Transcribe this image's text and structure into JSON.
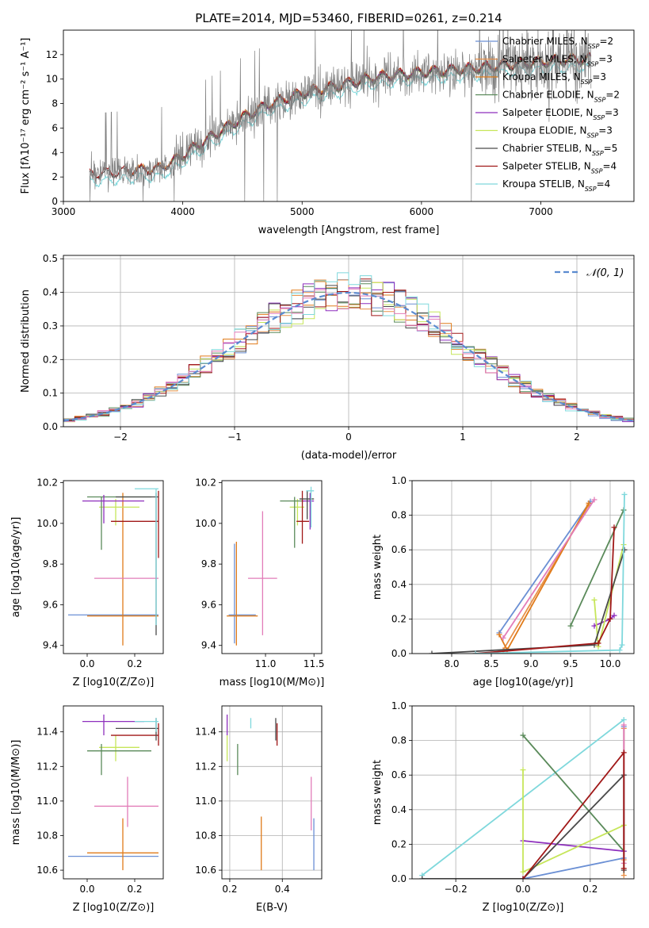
{
  "figure": {
    "title": "PLATE=2014, MJD=53460, FIBERID=0261, z=0.214"
  },
  "colors": {
    "Chabrier MILES": "#6a8fd4",
    "Salpeter MILES": "#e8914a",
    "Kroupa MILES": "#e07b1a",
    "Chabrier ELODIE": "#5a8a5a",
    "Salpeter ELODIE": "#8e2fbd",
    "Kroupa ELODIE": "#c6e65a",
    "Chabrier STELIB": "#4a4a4a",
    "Salpeter STELIB": "#a01818",
    "Kroupa STELIB": "#7fd8dc",
    "pink": "#e27cb8"
  },
  "chart_data": [
    {
      "id": "spectrum",
      "type": "line",
      "xlabel": "wavelength [Angstrom, rest frame]",
      "ylabel": "Flux [fλ10⁻¹⁷ erg cm⁻² s⁻¹ A⁻¹]",
      "xlim": [
        3000,
        7780
      ],
      "ylim": [
        0,
        14
      ],
      "xticks": [
        3000,
        4000,
        5000,
        6000,
        7000
      ],
      "yticks": [
        0,
        2,
        4,
        6,
        8,
        10,
        12
      ],
      "grid": false,
      "legend_position": "right",
      "legend": [
        {
          "text": "Chabrier MILES, N_SSP=2",
          "color": "#6a8fd4"
        },
        {
          "text": "Salpeter MILES, N_SSP=3",
          "color": "#e8914a"
        },
        {
          "text": "Kroupa MILES, N_SSP=3",
          "color": "#e07b1a"
        },
        {
          "text": "Chabrier ELODIE, N_SSP=2",
          "color": "#5a8a5a"
        },
        {
          "text": "Salpeter ELODIE, N_SSP=3",
          "color": "#8e2fbd"
        },
        {
          "text": "Kroupa ELODIE, N_SSP=3",
          "color": "#c6e65a"
        },
        {
          "text": "Chabrier STELIB, N_SSP=5",
          "color": "#4a4a4a"
        },
        {
          "text": "Salpeter STELIB, N_SSP=4",
          "color": "#a01818"
        },
        {
          "text": "Kroupa STELIB, N_SSP=4",
          "color": "#7fd8dc"
        }
      ],
      "data_color": "#808080",
      "data_range": [
        3220,
        7420
      ],
      "continuum": {
        "x": [
          3220,
          3400,
          3600,
          3800,
          3950,
          4100,
          4300,
          4500,
          4700,
          5000,
          5300,
          5600,
          6000,
          6400,
          6800,
          7200,
          7420
        ],
        "y": [
          2.2,
          2.3,
          2.5,
          2.6,
          3.4,
          4.4,
          5.6,
          6.8,
          7.8,
          8.8,
          9.4,
          10.1,
          10.5,
          10.8,
          11.2,
          11.5,
          11.6
        ]
      },
      "model_series": [
        {
          "name": "Kroupa STELIB",
          "color": "#7fd8dc",
          "offset": -0.6,
          "from": 3220
        },
        {
          "name": "Chabrier MILES",
          "color": "#6a8fd4",
          "offset": 0.05,
          "from": 3540
        },
        {
          "name": "Salpeter MILES",
          "color": "#e8914a",
          "offset": 0.15,
          "from": 3540
        },
        {
          "name": "Kroupa MILES",
          "color": "#e07b1a",
          "offset": 0.1,
          "from": 3540
        },
        {
          "name": "Kroupa ELODIE",
          "color": "#c6e65a",
          "offset": 0.0,
          "from": 3900
        },
        {
          "name": "Chabrier ELODIE",
          "color": "#5a8a5a",
          "offset": -0.05,
          "from": 3900
        },
        {
          "name": "Salpeter ELODIE",
          "color": "#8e2fbd",
          "offset": 0.05,
          "from": 3900
        },
        {
          "name": "Chabrier STELIB",
          "color": "#4a4a4a",
          "offset": 0.0,
          "from": 3220
        },
        {
          "name": "Salpeter STELIB",
          "color": "#a01818",
          "offset": 0.1,
          "from": 3220
        }
      ]
    },
    {
      "id": "residuals",
      "type": "step",
      "xlabel": "(data-model)/error",
      "ylabel": "Normed distribution",
      "xlim": [
        -2.5,
        2.5
      ],
      "ylim": [
        0,
        0.51
      ],
      "xticks": [
        -2,
        -1,
        0,
        1,
        2
      ],
      "yticks": [
        0.0,
        0.1,
        0.2,
        0.3,
        0.4,
        0.5
      ],
      "grid": true,
      "legend_position": "upper right",
      "legend": [
        {
          "text": "N(0,1)",
          "color": "#5b8bd0",
          "style": "dashed"
        }
      ],
      "bin_width": 0.1,
      "bin_range": [
        -2.5,
        2.5
      ],
      "gauss_curve": {
        "mu": 0,
        "sigma": 1,
        "color": "#5b8bd0"
      },
      "series_colors": [
        "#6a8fd4",
        "#e8914a",
        "#e07b1a",
        "#5a8a5a",
        "#8e2fbd",
        "#c6e65a",
        "#4a4a4a",
        "#a01818",
        "#7fd8dc",
        "#e27cb8"
      ]
    },
    {
      "id": "age_vs_Z",
      "type": "errorbar",
      "xlabel": "Z [log10(Z/Z⊙)]",
      "ylabel": "age  [log10(age/yr)]",
      "xlim": [
        -0.1,
        0.32
      ],
      "ylim": [
        9.36,
        10.21
      ],
      "xticks": [
        0.0,
        0.2
      ],
      "yticks": [
        9.4,
        9.6,
        9.8,
        10.0,
        10.2
      ],
      "grid": false,
      "points": [
        {
          "color": "#6a8fd4",
          "x": 0.11,
          "xlo": -0.08,
          "xhi": 0.3,
          "y": 9.55,
          "ylo": 9.55,
          "yhi": 9.55
        },
        {
          "color": "#e07b1a",
          "x": 0.15,
          "xlo": 0.0,
          "xhi": 0.3,
          "y": 9.545,
          "ylo": 9.4,
          "yhi": 10.15
        },
        {
          "color": "#e27cb8",
          "x": 0.17,
          "xlo": 0.03,
          "xhi": 0.3,
          "y": 9.73,
          "ylo": 9.73,
          "yhi": 9.73
        },
        {
          "color": "#c6e65a",
          "x": 0.12,
          "xlo": 0.05,
          "xhi": 0.22,
          "y": 10.08,
          "ylo": 9.99,
          "yhi": 10.12
        },
        {
          "color": "#5a8a5a",
          "x": 0.06,
          "xlo": 0.0,
          "xhi": 0.27,
          "y": 10.13,
          "ylo": 9.87,
          "yhi": 10.13
        },
        {
          "color": "#8e2fbd",
          "x": 0.07,
          "xlo": -0.02,
          "xhi": 0.24,
          "y": 10.11,
          "ylo": 10.0,
          "yhi": 10.14
        },
        {
          "color": "#a01818",
          "x": 0.3,
          "xlo": 0.1,
          "xhi": 0.3,
          "y": 10.01,
          "ylo": 9.83,
          "yhi": 10.16
        },
        {
          "color": "#4a4a4a",
          "x": 0.29,
          "xlo": 0.12,
          "xhi": 0.3,
          "y": 10.13,
          "ylo": 9.45,
          "yhi": 10.15
        },
        {
          "color": "#7fd8dc",
          "x": 0.29,
          "xlo": 0.2,
          "xhi": 0.3,
          "y": 10.17,
          "ylo": 9.5,
          "yhi": 10.17
        }
      ]
    },
    {
      "id": "age_vs_mass",
      "type": "errorbar",
      "xlabel": "mass [log10(M/M⊙)]",
      "ylabel": "",
      "xlim": [
        10.55,
        11.58
      ],
      "ylim": [
        9.36,
        10.21
      ],
      "xticks": [
        11.0,
        11.5
      ],
      "yticks": [
        9.4,
        9.6,
        9.8,
        10.0,
        10.2
      ],
      "grid": false,
      "points": [
        {
          "color": "#6a8fd4",
          "x": 10.68,
          "xlo": 10.62,
          "xhi": 10.9,
          "y": 9.55,
          "ylo": 9.41,
          "yhi": 9.9
        },
        {
          "color": "#e07b1a",
          "x": 10.7,
          "xlo": 10.6,
          "xhi": 10.92,
          "y": 9.545,
          "ylo": 9.4,
          "yhi": 9.91
        },
        {
          "color": "#e27cb8",
          "x": 10.97,
          "xlo": 10.82,
          "xhi": 11.12,
          "y": 9.73,
          "ylo": 9.45,
          "yhi": 10.06
        },
        {
          "color": "#c6e65a",
          "x": 11.33,
          "xlo": 11.25,
          "xhi": 11.4,
          "y": 10.08,
          "ylo": 9.99,
          "yhi": 10.12
        },
        {
          "color": "#5a8a5a",
          "x": 11.3,
          "xlo": 11.15,
          "xhi": 11.4,
          "y": 10.11,
          "ylo": 9.88,
          "yhi": 10.13
        },
        {
          "color": "#8e2fbd",
          "x": 11.46,
          "xlo": 11.38,
          "xhi": 11.5,
          "y": 10.11,
          "ylo": 9.97,
          "yhi": 10.15
        },
        {
          "color": "#a01818",
          "x": 11.38,
          "xlo": 11.32,
          "xhi": 11.45,
          "y": 10.01,
          "ylo": 9.9,
          "yhi": 10.16
        },
        {
          "color": "#4a4a4a",
          "x": 11.43,
          "xlo": 11.35,
          "xhi": 11.5,
          "y": 10.12,
          "ylo": 10.02,
          "yhi": 10.16
        },
        {
          "color": "#7fd8dc",
          "x": 11.47,
          "xlo": 11.42,
          "xhi": 11.5,
          "y": 10.16,
          "ylo": 9.98,
          "yhi": 10.18
        }
      ]
    },
    {
      "id": "weight_vs_age",
      "type": "line",
      "xlabel": "age  [log10(age/yr)]",
      "ylabel": "mass weight",
      "xlim": [
        7.5,
        10.3
      ],
      "ylim": [
        0,
        1.0
      ],
      "xticks": [
        8.0,
        8.5,
        9.0,
        9.5,
        10.0
      ],
      "yticks": [
        0.0,
        0.2,
        0.4,
        0.6,
        0.8,
        1.0
      ],
      "grid": true,
      "series": [
        {
          "color": "#6a8fd4",
          "x": [
            8.6,
            9.75
          ],
          "y": [
            0.12,
            0.88
          ]
        },
        {
          "color": "#e8914a",
          "x": [
            8.65,
            9.73
          ],
          "y": [
            0.02,
            0.86
          ]
        },
        {
          "color": "#e07b1a",
          "x": [
            8.6,
            8.7,
            9.73
          ],
          "y": [
            0.11,
            0.02,
            0.87
          ]
        },
        {
          "color": "#e27cb8",
          "x": [
            8.65,
            9.8
          ],
          "y": [
            0.09,
            0.89
          ]
        },
        {
          "color": "#5a8a5a",
          "x": [
            9.5,
            10.17
          ],
          "y": [
            0.16,
            0.83
          ]
        },
        {
          "color": "#8e2fbd",
          "x": [
            9.8,
            10.0,
            10.05
          ],
          "y": [
            0.16,
            0.2,
            0.22
          ]
        },
        {
          "color": "#c6e65a",
          "x": [
            9.8,
            9.85,
            10.17
          ],
          "y": [
            0.31,
            0.04,
            0.63
          ]
        },
        {
          "color": "#4a4a4a",
          "x": [
            7.75,
            9.8,
            10.18
          ],
          "y": [
            0.0,
            0.05,
            0.6
          ]
        },
        {
          "color": "#a01818",
          "x": [
            8.3,
            9.85,
            10.0,
            10.05
          ],
          "y": [
            0.0,
            0.06,
            0.2,
            0.73
          ]
        },
        {
          "color": "#7fd8dc",
          "x": [
            8.3,
            10.12,
            10.15,
            10.18
          ],
          "y": [
            0.0,
            0.02,
            0.05,
            0.92
          ]
        }
      ]
    },
    {
      "id": "mass_vs_Z",
      "type": "errorbar",
      "xlabel": "Z [log10(Z/Z⊙)]",
      "ylabel": "mass [log10(M/M⊙)]",
      "xlim": [
        -0.1,
        0.32
      ],
      "ylim": [
        10.55,
        11.55
      ],
      "xticks": [
        0.0,
        0.2
      ],
      "yticks": [
        10.6,
        10.8,
        11.0,
        11.2,
        11.4
      ],
      "grid": false,
      "points": [
        {
          "color": "#6a8fd4",
          "x": 0.11,
          "xlo": -0.08,
          "xhi": 0.3,
          "y": 10.68,
          "ylo": 10.68,
          "yhi": 10.68
        },
        {
          "color": "#e07b1a",
          "x": 0.15,
          "xlo": 0.0,
          "xhi": 0.3,
          "y": 10.7,
          "ylo": 10.6,
          "yhi": 10.9
        },
        {
          "color": "#e27cb8",
          "x": 0.17,
          "xlo": 0.03,
          "xhi": 0.3,
          "y": 10.97,
          "ylo": 10.85,
          "yhi": 11.14
        },
        {
          "color": "#c6e65a",
          "x": 0.12,
          "xlo": 0.05,
          "xhi": 0.22,
          "y": 11.31,
          "ylo": 11.23,
          "yhi": 11.38
        },
        {
          "color": "#5a8a5a",
          "x": 0.06,
          "xlo": 0.0,
          "xhi": 0.27,
          "y": 11.29,
          "ylo": 11.15,
          "yhi": 11.33
        },
        {
          "color": "#8e2fbd",
          "x": 0.07,
          "xlo": -0.02,
          "xhi": 0.24,
          "y": 11.46,
          "ylo": 11.38,
          "yhi": 11.5
        },
        {
          "color": "#a01818",
          "x": 0.3,
          "xlo": 0.1,
          "xhi": 0.3,
          "y": 11.38,
          "ylo": 11.32,
          "yhi": 11.45
        },
        {
          "color": "#4a4a4a",
          "x": 0.29,
          "xlo": 0.12,
          "xhi": 0.3,
          "y": 11.42,
          "ylo": 11.35,
          "yhi": 11.48
        },
        {
          "color": "#7fd8dc",
          "x": 0.29,
          "xlo": 0.2,
          "xhi": 0.3,
          "y": 11.46,
          "ylo": 11.4,
          "yhi": 11.48
        }
      ]
    },
    {
      "id": "mass_vs_ebv",
      "type": "errorbar",
      "xlabel": "E(B-V)",
      "ylabel": "",
      "xlim": [
        0.17,
        0.55
      ],
      "ylim": [
        10.55,
        11.55
      ],
      "xticks": [
        0.2,
        0.4
      ],
      "yticks": [
        10.6,
        10.8,
        11.0,
        11.2,
        11.4
      ],
      "grid": true,
      "points": [
        {
          "color": "#6a8fd4",
          "x": 0.52,
          "xlo": 0.52,
          "xhi": 0.52,
          "y": 10.68,
          "ylo": 10.6,
          "yhi": 10.9
        },
        {
          "color": "#e07b1a",
          "x": 0.32,
          "xlo": 0.32,
          "xhi": 0.32,
          "y": 10.7,
          "ylo": 10.6,
          "yhi": 10.91
        },
        {
          "color": "#e27cb8",
          "x": 0.51,
          "xlo": 0.51,
          "xhi": 0.51,
          "y": 10.97,
          "ylo": 10.83,
          "yhi": 11.14
        },
        {
          "color": "#c6e65a",
          "x": 0.19,
          "xlo": 0.19,
          "xhi": 0.19,
          "y": 11.31,
          "ylo": 11.23,
          "yhi": 11.38
        },
        {
          "color": "#5a8a5a",
          "x": 0.23,
          "xlo": 0.23,
          "xhi": 0.23,
          "y": 11.29,
          "ylo": 11.15,
          "yhi": 11.33
        },
        {
          "color": "#8e2fbd",
          "x": 0.19,
          "xlo": 0.19,
          "xhi": 0.19,
          "y": 11.46,
          "ylo": 11.38,
          "yhi": 11.5
        },
        {
          "color": "#a01818",
          "x": 0.38,
          "xlo": 0.38,
          "xhi": 0.38,
          "y": 11.38,
          "ylo": 11.32,
          "yhi": 11.45
        },
        {
          "color": "#4a4a4a",
          "x": 0.375,
          "xlo": 0.375,
          "xhi": 0.375,
          "y": 11.42,
          "ylo": 11.35,
          "yhi": 11.48
        },
        {
          "color": "#7fd8dc",
          "x": 0.28,
          "xlo": 0.28,
          "xhi": 0.28,
          "y": 11.46,
          "ylo": 11.42,
          "yhi": 11.48
        }
      ]
    },
    {
      "id": "weight_vs_Z",
      "type": "line",
      "xlabel": "Z [log10(Z/Z⊙)]",
      "ylabel": "mass weight",
      "xlim": [
        -0.33,
        0.33
      ],
      "ylim": [
        0,
        1.0
      ],
      "xticks": [
        -0.2,
        0.0,
        0.2
      ],
      "yticks": [
        0.0,
        0.2,
        0.4,
        0.6,
        0.8,
        1.0
      ],
      "grid": true,
      "series": [
        {
          "color": "#6a8fd4",
          "x": [
            0.0,
            0.3,
            0.3
          ],
          "y": [
            0.0,
            0.12,
            0.88
          ]
        },
        {
          "color": "#e8914a",
          "x": [
            0.3,
            0.3,
            0.3
          ],
          "y": [
            0.02,
            0.11,
            0.87
          ]
        },
        {
          "color": "#e27cb8",
          "x": [
            0.3,
            0.3
          ],
          "y": [
            0.09,
            0.89
          ]
        },
        {
          "color": "#7fd8dc",
          "x": [
            -0.3,
            0.3
          ],
          "y": [
            0.02,
            0.92
          ]
        },
        {
          "color": "#5a8a5a",
          "x": [
            0.0,
            0.3
          ],
          "y": [
            0.83,
            0.16
          ]
        },
        {
          "color": "#8e2fbd",
          "x": [
            0.0,
            0.3
          ],
          "y": [
            0.22,
            0.16
          ]
        },
        {
          "color": "#c6e65a",
          "x": [
            0.0,
            0.0,
            0.3
          ],
          "y": [
            0.63,
            0.04,
            0.31
          ]
        },
        {
          "color": "#4a4a4a",
          "x": [
            -0.3,
            0.0,
            0.3,
            0.3
          ],
          "y": [
            0.0,
            0.0,
            0.6,
            0.05
          ]
        },
        {
          "color": "#a01818",
          "x": [
            0.0,
            0.3,
            0.3
          ],
          "y": [
            0.0,
            0.73,
            0.06
          ]
        }
      ]
    }
  ]
}
